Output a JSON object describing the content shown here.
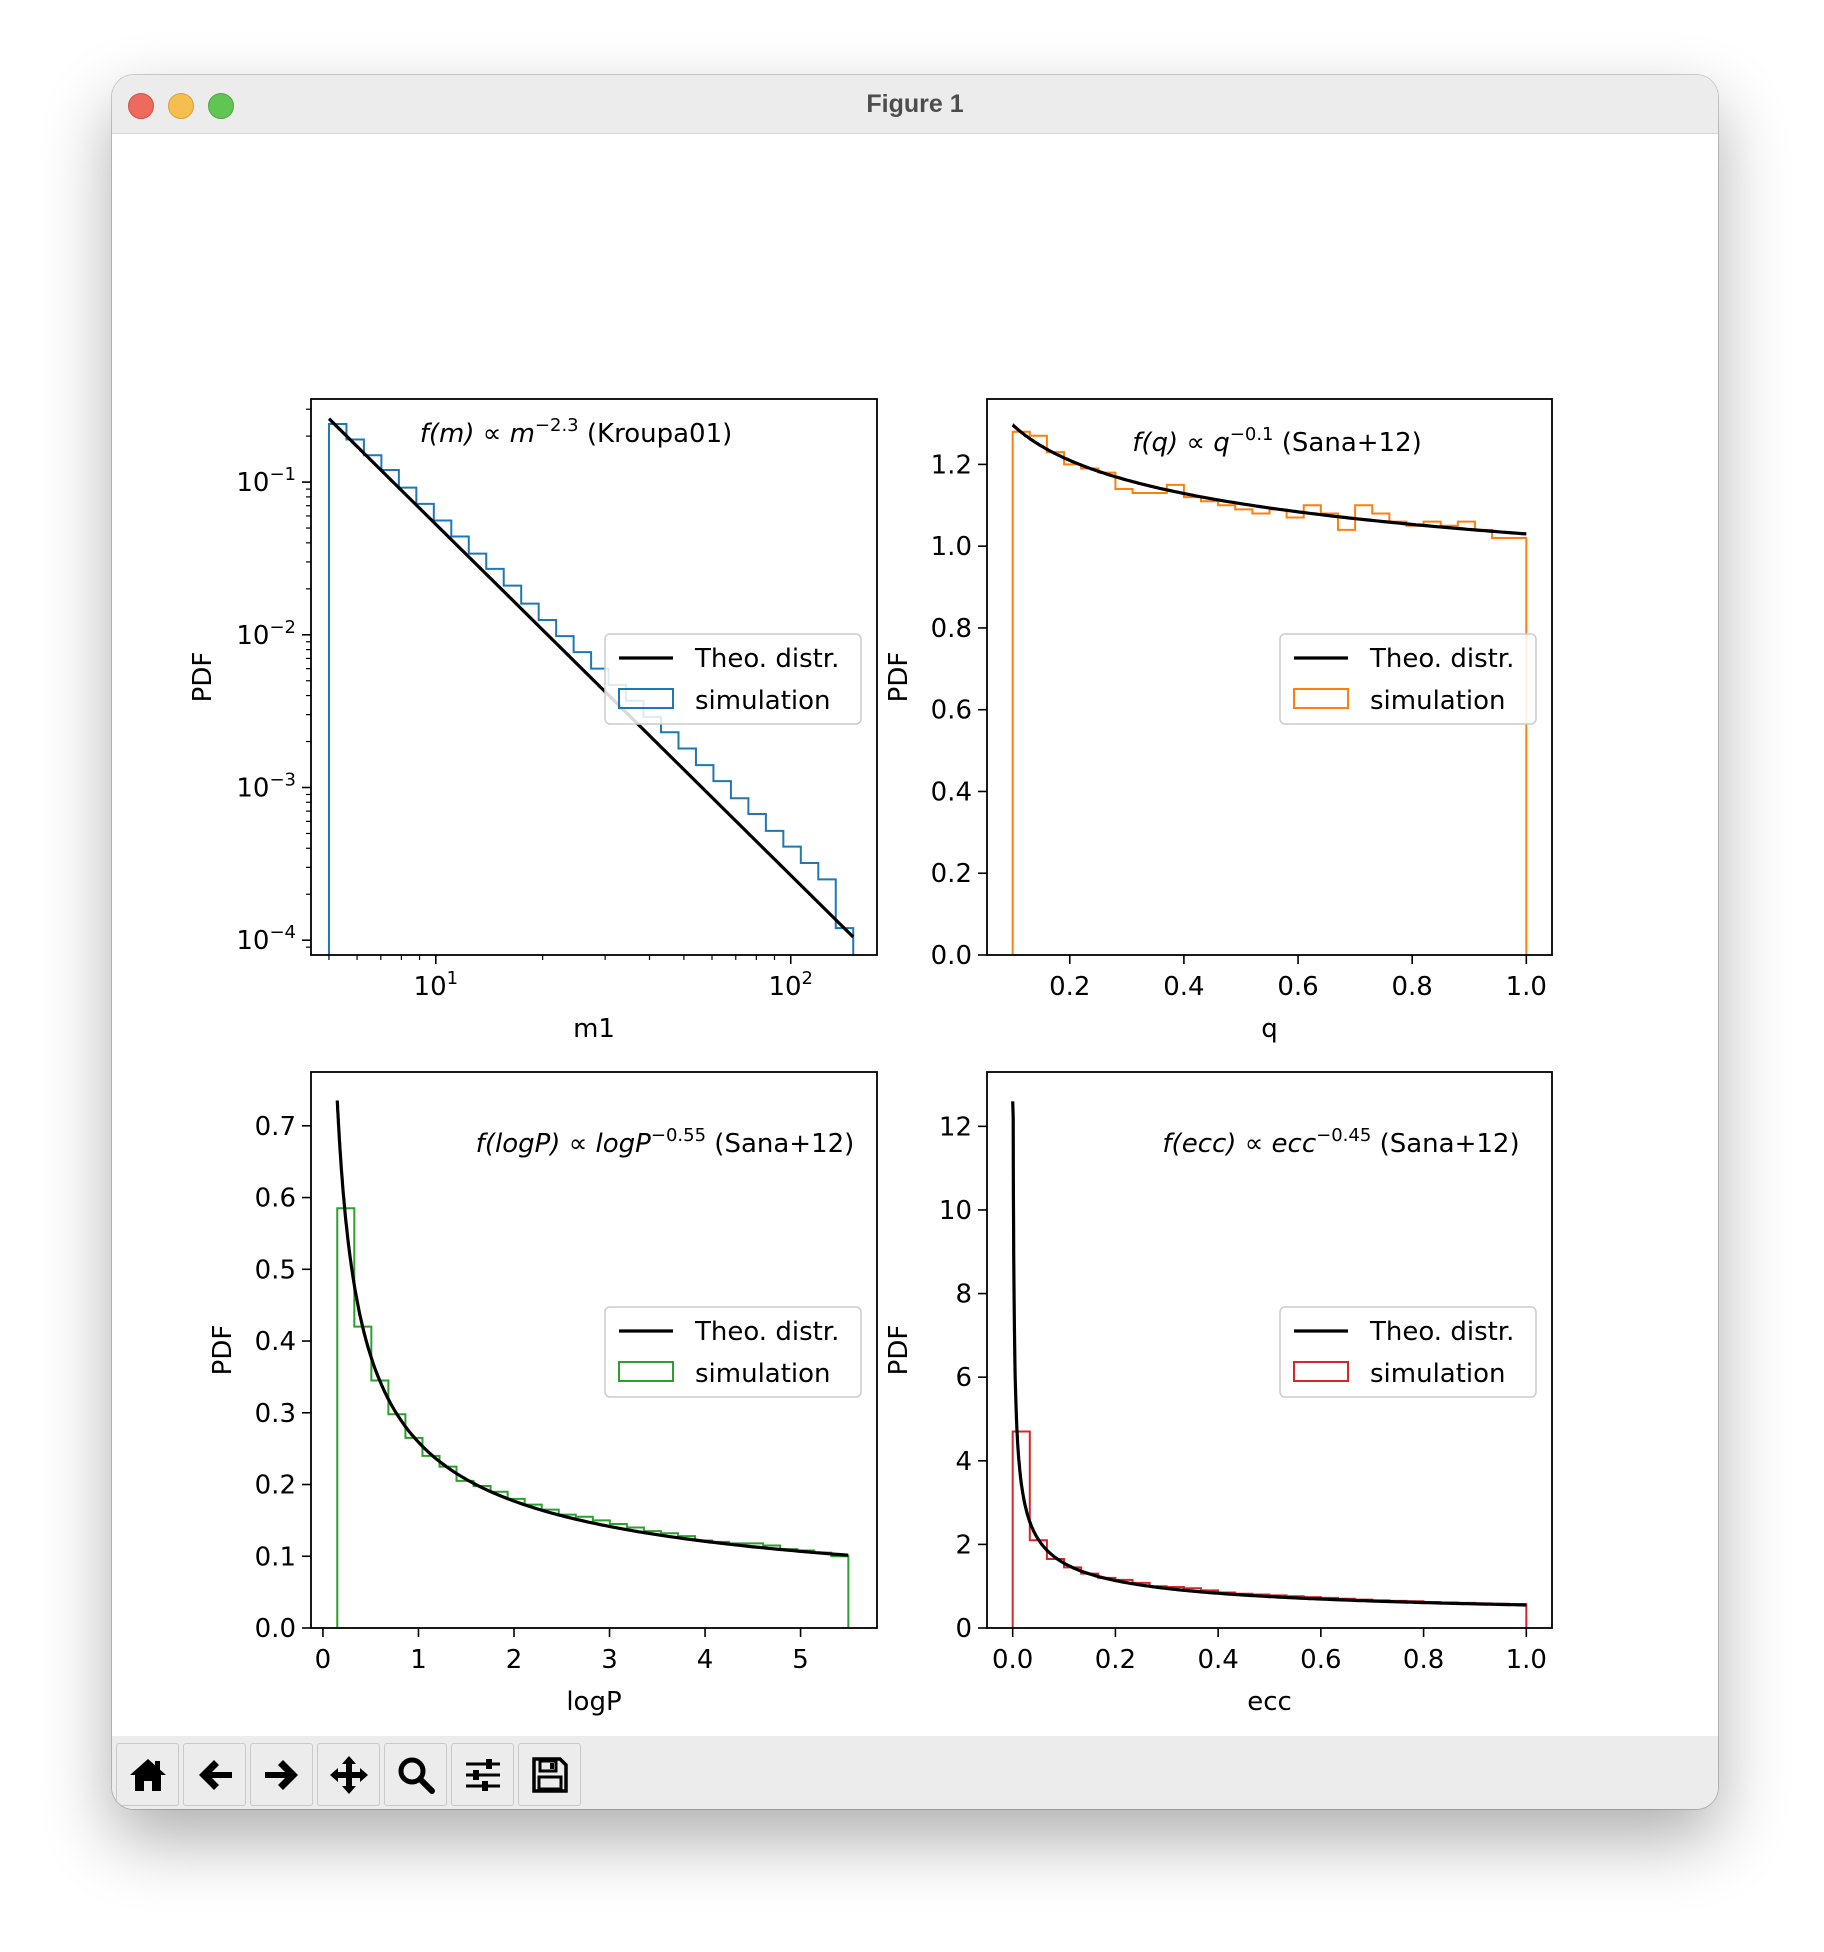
{
  "window": {
    "title": "Figure 1"
  },
  "toolbar": [
    {
      "name": "home-icon"
    },
    {
      "name": "back-arrow-icon"
    },
    {
      "name": "forward-arrow-icon"
    },
    {
      "name": "pan-icon"
    },
    {
      "name": "zoom-icon"
    },
    {
      "name": "configure-subplots-icon"
    },
    {
      "name": "save-icon"
    }
  ],
  "legend": {
    "theory": "Theo. distr.",
    "simulation": "simulation"
  },
  "chart_data": [
    {
      "type": "line",
      "title_func": "f(m)",
      "title_prop": "∝",
      "title_var": "m",
      "title_exp": "−2.3",
      "title_ref": "(Kroupa01)",
      "xlabel": "m1",
      "ylabel": "PDF",
      "xscale": "log",
      "yscale": "log",
      "xlim": [
        4.45,
        175
      ],
      "ylim": [
        8e-05,
        0.35
      ],
      "xticks": [
        {
          "label": "10",
          "exp": "1",
          "v": 10
        },
        {
          "label": "10",
          "exp": "2",
          "v": 100
        }
      ],
      "yticks": [
        {
          "label": "10",
          "exp": "−1",
          "v": 0.1
        },
        {
          "label": "10",
          "exp": "−2",
          "v": 0.01
        },
        {
          "label": "10",
          "exp": "−3",
          "v": 0.001
        },
        {
          "label": "10",
          "exp": "−4",
          "v": 0.0001
        }
      ],
      "hist_color": "#1f77b4",
      "series": [
        {
          "name": "Theo. distr.",
          "x": [
            5,
            150
          ],
          "y": [
            0.26,
            0.000105
          ]
        },
        {
          "name": "simulation",
          "kind": "hist",
          "x0": 5,
          "x1": 150,
          "n": 30,
          "bin_edges_spacing": "log",
          "values": [
            0.24,
            0.19,
            0.15,
            0.12,
            0.092,
            0.072,
            0.056,
            0.044,
            0.034,
            0.027,
            0.021,
            0.016,
            0.0125,
            0.0098,
            0.0077,
            0.006,
            0.0047,
            0.0037,
            0.0029,
            0.0023,
            0.0018,
            0.0014,
            0.0011,
            0.00085,
            0.00067,
            0.00052,
            0.00041,
            0.00032,
            0.00025,
            0.00012
          ]
        }
      ],
      "legend_position": "center-right"
    },
    {
      "type": "line",
      "title_func": "f(q)",
      "title_prop": "∝",
      "title_var": "q",
      "title_exp": "−0.1",
      "title_ref": "(Sana+12)",
      "xlabel": "q",
      "ylabel": "PDF",
      "xscale": "linear",
      "yscale": "linear",
      "xlim": [
        0.055,
        1.045
      ],
      "ylim": [
        0.0,
        1.36
      ],
      "xticks": [
        {
          "label": "0.2",
          "v": 0.2
        },
        {
          "label": "0.4",
          "v": 0.4
        },
        {
          "label": "0.6",
          "v": 0.6
        },
        {
          "label": "0.8",
          "v": 0.8
        },
        {
          "label": "1.0",
          "v": 1.0
        }
      ],
      "yticks": [
        {
          "label": "0.0",
          "v": 0
        },
        {
          "label": "0.2",
          "v": 0.2
        },
        {
          "label": "0.4",
          "v": 0.4
        },
        {
          "label": "0.6",
          "v": 0.6
        },
        {
          "label": "0.8",
          "v": 0.8
        },
        {
          "label": "1.0",
          "v": 1.0
        },
        {
          "label": "1.2",
          "v": 1.2
        }
      ],
      "hist_color": "#ff7f0e",
      "series": [
        {
          "name": "Theo. distr.",
          "func": "q^-0.1",
          "x0": 0.1,
          "x1": 1.0,
          "scale": 1.03
        },
        {
          "name": "simulation",
          "kind": "hist",
          "x0": 0.1,
          "x1": 1.0,
          "n": 30,
          "values": [
            1.28,
            1.27,
            1.23,
            1.2,
            1.19,
            1.18,
            1.14,
            1.13,
            1.13,
            1.15,
            1.12,
            1.11,
            1.1,
            1.09,
            1.08,
            1.09,
            1.07,
            1.1,
            1.08,
            1.04,
            1.1,
            1.08,
            1.06,
            1.05,
            1.06,
            1.05,
            1.06,
            1.04,
            1.02,
            1.02
          ]
        }
      ],
      "legend_position": "center-right"
    },
    {
      "type": "line",
      "title_func": "f(logP)",
      "title_prop": "∝",
      "title_var": "logP",
      "title_exp": "−0.55",
      "title_ref": "(Sana+12)",
      "xlabel": "logP",
      "ylabel": "PDF",
      "xscale": "linear",
      "yscale": "linear",
      "xlim": [
        -0.125,
        5.8
      ],
      "ylim": [
        0.0,
        0.775
      ],
      "xticks": [
        {
          "label": "0",
          "v": 0
        },
        {
          "label": "1",
          "v": 1
        },
        {
          "label": "2",
          "v": 2
        },
        {
          "label": "3",
          "v": 3
        },
        {
          "label": "4",
          "v": 4
        },
        {
          "label": "5",
          "v": 5
        }
      ],
      "yticks": [
        {
          "label": "0.0",
          "v": 0
        },
        {
          "label": "0.1",
          "v": 0.1
        },
        {
          "label": "0.2",
          "v": 0.2
        },
        {
          "label": "0.3",
          "v": 0.3
        },
        {
          "label": "0.4",
          "v": 0.4
        },
        {
          "label": "0.5",
          "v": 0.5
        },
        {
          "label": "0.6",
          "v": 0.6
        },
        {
          "label": "0.7",
          "v": 0.7
        }
      ],
      "hist_color": "#2ca02c",
      "series": [
        {
          "name": "Theo. distr.",
          "func": "x^-0.55",
          "x0": 0.15,
          "x1": 5.5,
          "scale": 0.259
        },
        {
          "name": "simulation",
          "kind": "hist",
          "x0": 0.15,
          "x1": 5.5,
          "n": 30,
          "values": [
            0.585,
            0.42,
            0.345,
            0.298,
            0.265,
            0.24,
            0.225,
            0.205,
            0.198,
            0.19,
            0.18,
            0.172,
            0.165,
            0.158,
            0.155,
            0.15,
            0.145,
            0.14,
            0.135,
            0.132,
            0.128,
            0.122,
            0.12,
            0.118,
            0.118,
            0.115,
            0.11,
            0.108,
            0.105,
            0.1
          ]
        }
      ],
      "legend_position": "center-right"
    },
    {
      "type": "line",
      "title_func": "f(ecc)",
      "title_prop": "∝",
      "title_var": "ecc",
      "title_exp": "−0.45",
      "title_ref": "(Sana+12)",
      "xlabel": "ecc",
      "ylabel": "PDF",
      "xscale": "linear",
      "yscale": "linear",
      "xlim": [
        -0.05,
        1.05
      ],
      "ylim": [
        0.0,
        13.3
      ],
      "xticks": [
        {
          "label": "0.0",
          "v": 0
        },
        {
          "label": "0.2",
          "v": 0.2
        },
        {
          "label": "0.4",
          "v": 0.4
        },
        {
          "label": "0.6",
          "v": 0.6
        },
        {
          "label": "0.8",
          "v": 0.8
        },
        {
          "label": "1.0",
          "v": 1.0
        }
      ],
      "yticks": [
        {
          "label": "0",
          "v": 0
        },
        {
          "label": "2",
          "v": 2
        },
        {
          "label": "4",
          "v": 4
        },
        {
          "label": "6",
          "v": 6
        },
        {
          "label": "8",
          "v": 8
        },
        {
          "label": "10",
          "v": 10
        },
        {
          "label": "12",
          "v": 12
        }
      ],
      "hist_color": "#d62728",
      "series": [
        {
          "name": "Theo. distr.",
          "func": "x^-0.45",
          "x0": 0.0001,
          "x1": 1.0,
          "scale": 0.55,
          "ymax": 12.6
        },
        {
          "name": "simulation",
          "kind": "hist",
          "x0": 0.0,
          "x1": 1.0,
          "n": 30,
          "values": [
            4.7,
            2.1,
            1.65,
            1.45,
            1.3,
            1.2,
            1.15,
            1.08,
            1.0,
            0.98,
            0.95,
            0.9,
            0.85,
            0.82,
            0.8,
            0.78,
            0.76,
            0.74,
            0.72,
            0.7,
            0.68,
            0.66,
            0.65,
            0.64,
            0.62,
            0.61,
            0.6,
            0.59,
            0.58,
            0.57
          ]
        }
      ],
      "legend_position": "center-right"
    }
  ]
}
